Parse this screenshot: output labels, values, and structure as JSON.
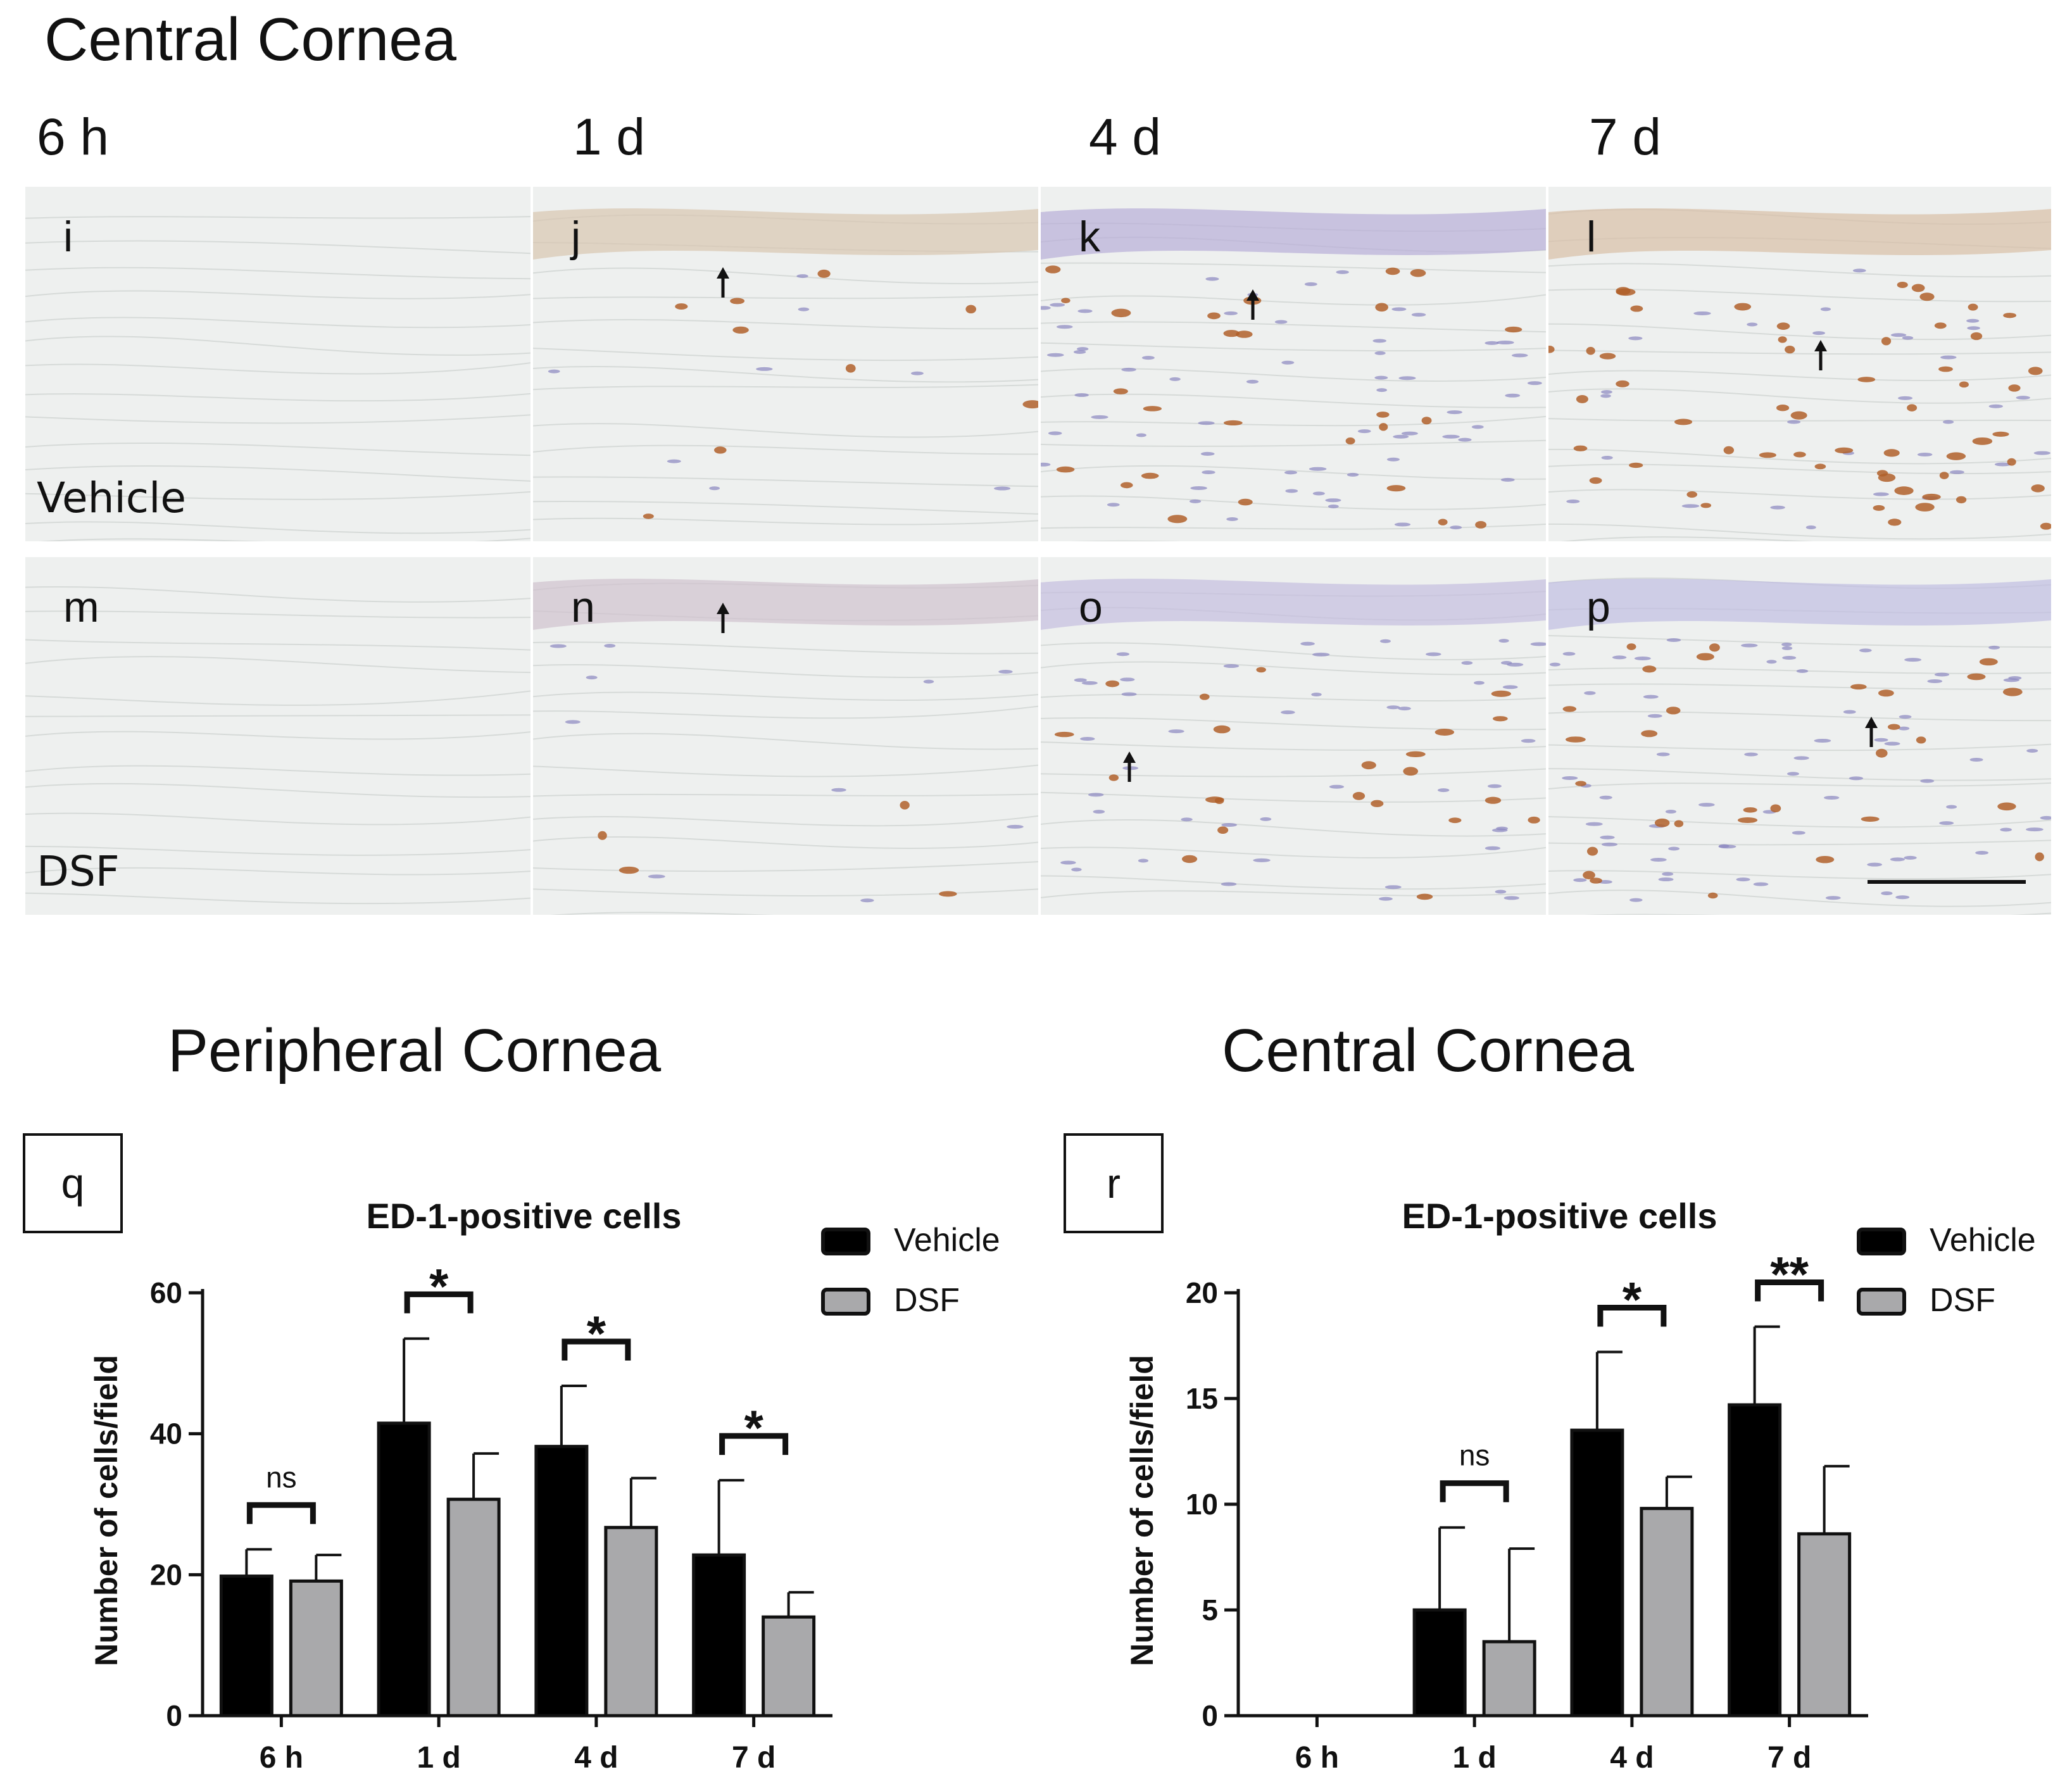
{
  "figure": {
    "micro_title": "Central Cornea",
    "time_labels": [
      "6 h",
      "1 d",
      "4 d",
      "7 d"
    ],
    "row_labels": [
      "Vehicle",
      "DSF"
    ],
    "panel_letters": [
      [
        "i",
        "j",
        "k",
        "l"
      ],
      [
        "m",
        "n",
        "o",
        "p"
      ]
    ],
    "chart_section_titles": [
      "Peripheral Cornea",
      "Central Cornea"
    ],
    "chart_panel_letters": [
      "q",
      "r"
    ]
  },
  "colors": {
    "vehicle": "#000000",
    "dsf": "#a9a9ab",
    "tissue_bg": "#eef0ef",
    "dab_brown": "#b0602a",
    "hematoxylin": "#8a86c0"
  },
  "chart_data": [
    {
      "type": "bar",
      "title": "ED-1-positive cells",
      "ylabel": "Number of cells/field",
      "xlabel": "",
      "categories": [
        "6 h",
        "1 d",
        "4 d",
        "7 d"
      ],
      "series": [
        {
          "name": "Vehicle",
          "values": [
            19.8,
            41.5,
            38.2,
            22.8
          ],
          "errors": [
            3.8,
            12.0,
            8.6,
            10.6
          ]
        },
        {
          "name": "DSF",
          "values": [
            19.1,
            30.7,
            26.7,
            14.0
          ],
          "errors": [
            3.7,
            6.5,
            7.0,
            3.5
          ]
        }
      ],
      "ylim": [
        0,
        60
      ],
      "yticks": [
        "0",
        "20",
        "40",
        "60"
      ],
      "significance": [
        "ns",
        "*",
        "*",
        "*"
      ],
      "grid": false,
      "legend": "top-right"
    },
    {
      "type": "bar",
      "title": "ED-1-positive cells",
      "ylabel": "Number of cells/field",
      "xlabel": "",
      "categories": [
        "6 h",
        "1 d",
        "4 d",
        "7 d"
      ],
      "series": [
        {
          "name": "Vehicle",
          "values": [
            0,
            5.0,
            13.5,
            14.7
          ],
          "errors": [
            0,
            3.9,
            3.7,
            3.7
          ]
        },
        {
          "name": "DSF",
          "values": [
            0,
            3.5,
            9.8,
            8.6
          ],
          "errors": [
            0,
            4.4,
            1.5,
            3.2
          ]
        }
      ],
      "ylim": [
        0,
        20
      ],
      "yticks": [
        "0",
        "5",
        "10",
        "15",
        "20"
      ],
      "significance": [
        "",
        "ns",
        "*",
        "**"
      ],
      "grid": false,
      "legend": "top-right"
    }
  ]
}
